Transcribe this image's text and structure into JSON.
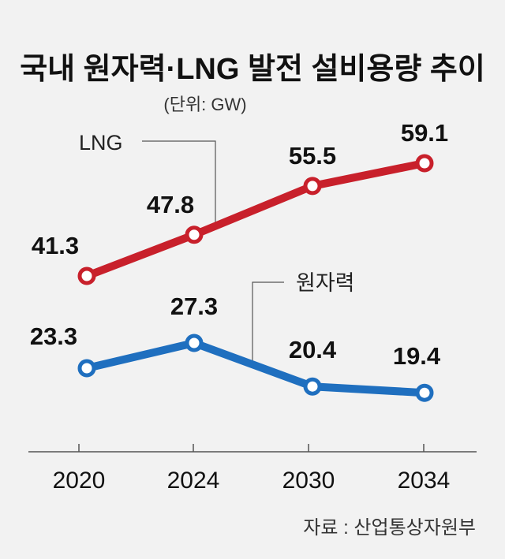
{
  "chart_data": {
    "type": "line",
    "title": "국내 원자력·LNG 발전 설비용량 추이",
    "subtitle": "(단위: GW)",
    "source": "자료 : 산업통상자원부",
    "xlabel": "",
    "ylabel": "",
    "categories": [
      "2020",
      "2024",
      "2030",
      "2034"
    ],
    "ylim": [
      10,
      65
    ],
    "grid": false,
    "series": [
      {
        "name": "LNG",
        "color": "#c8202b",
        "values": [
          41.3,
          47.8,
          55.5,
          59.1
        ],
        "labels": [
          "41.3",
          "47.8",
          "55.5",
          "59.1"
        ]
      },
      {
        "name": "원자력",
        "color": "#1f6fbf",
        "values": [
          23.3,
          27.3,
          20.4,
          19.4
        ],
        "labels": [
          "23.3",
          "27.3",
          "20.4",
          "19.4"
        ]
      }
    ]
  }
}
